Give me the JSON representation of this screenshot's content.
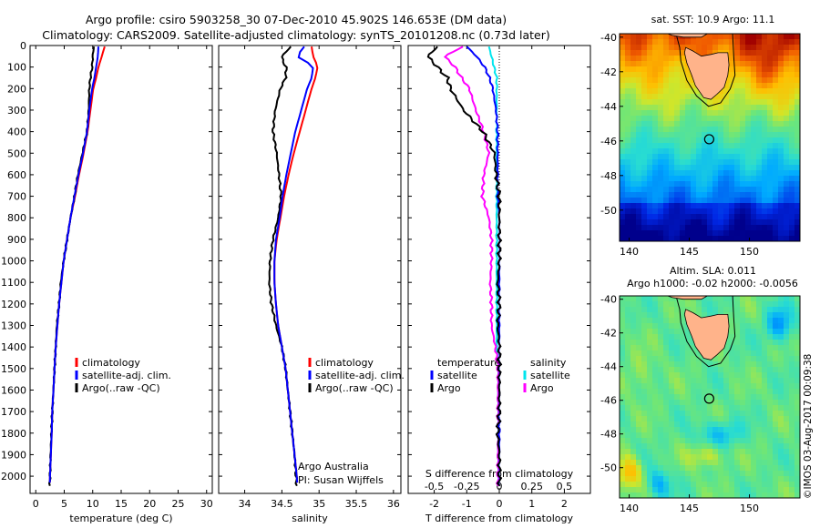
{
  "header": {
    "line1": "Argo profile: csiro 5903258_30 07-Dec-2010 45.902S 146.653E (DM data)",
    "line2": "Climatology: CARS2009. Satellite-adjusted climatology: synTS_20101208.nc (0.73d later)"
  },
  "colors": {
    "climatology": "#ff0000",
    "satellite": "#0000ff",
    "argo": "#000000",
    "sal_satellite": "#00e5ee",
    "sal_argo": "#ff00ff",
    "land": "#ffb38a"
  },
  "info": {
    "institution": "Argo Australia",
    "pi": "PI: Susan Wijffels",
    "watermark": "©IMOS 03-Aug-2017 00:09:38"
  },
  "maps": {
    "sst_title": "sat. SST: 10.9  Argo: 11.1",
    "sla_title1": "Altim. SLA: 0.011",
    "sla_title2": "Argo h1000: -0.02  h2000: -0.0056",
    "lat_ticks": [
      "-40",
      "-42",
      "-44",
      "-46",
      "-48",
      "-50"
    ],
    "lon_ticks": [
      "140",
      "145",
      "150"
    ],
    "lat_range": [
      -51.8,
      -39.8
    ],
    "lon_range": [
      139.2,
      154.2
    ],
    "float_lat": -45.902,
    "float_lon": 146.653
  },
  "chart_data": [
    {
      "type": "line",
      "xlabel": "temperature (deg C)",
      "ylabel": "",
      "xlim": [
        -1,
        31
      ],
      "ylim": [
        2080,
        0
      ],
      "xticks": [
        0,
        5,
        10,
        15,
        20,
        25,
        30
      ],
      "yticks": [
        0,
        100,
        200,
        300,
        400,
        500,
        600,
        700,
        800,
        900,
        1000,
        1100,
        1200,
        1300,
        1400,
        1500,
        1600,
        1700,
        1800,
        1900,
        2000
      ],
      "legend": [
        "climatology",
        "satellite-adj. clim.",
        "Argo(..raw -QC)"
      ],
      "depth": [
        5,
        50,
        100,
        150,
        200,
        300,
        400,
        500,
        600,
        700,
        800,
        900,
        1000,
        1100,
        1200,
        1300,
        1400,
        1500,
        1600,
        1700,
        1800,
        1900,
        2000,
        2050
      ],
      "series": [
        {
          "name": "climatology",
          "values": [
            12.1,
            11.6,
            11.0,
            10.6,
            10.1,
            9.6,
            9.1,
            8.4,
            7.6,
            6.9,
            6.1,
            5.5,
            4.9,
            4.5,
            4.1,
            3.8,
            3.5,
            3.3,
            3.1,
            2.9,
            2.8,
            2.65,
            2.5,
            2.45
          ]
        },
        {
          "name": "satellite-adj. clim.",
          "values": [
            11.0,
            10.9,
            10.6,
            10.3,
            9.9,
            9.4,
            9.0,
            8.3,
            7.5,
            6.8,
            6.1,
            5.5,
            4.9,
            4.5,
            4.1,
            3.8,
            3.5,
            3.3,
            3.1,
            2.9,
            2.8,
            2.65,
            2.5,
            2.45
          ]
        },
        {
          "name": "Argo(..raw -QC)",
          "values": [
            10.2,
            10.0,
            9.9,
            9.6,
            9.4,
            9.3,
            9.0,
            8.2,
            7.4,
            6.8,
            6.1,
            5.5,
            4.9,
            4.4,
            4.1,
            3.7,
            3.5,
            3.3,
            3.1,
            2.9,
            2.75,
            2.6,
            2.5,
            2.45
          ]
        }
      ]
    },
    {
      "type": "line",
      "xlabel": "salinity",
      "xlim": [
        33.65,
        36.1
      ],
      "ylim": [
        2080,
        0
      ],
      "xticks": [
        34,
        34.5,
        35,
        35.5,
        36
      ],
      "xticklabels": [
        "34",
        "34.5",
        "35",
        "35.5",
        "36"
      ],
      "legend": [
        "climatology",
        "satellite-adj. clim.",
        "Argo(..raw -QC)"
      ],
      "depth": [
        5,
        50,
        80,
        100,
        150,
        200,
        300,
        400,
        500,
        600,
        700,
        800,
        900,
        1000,
        1100,
        1200,
        1300,
        1400,
        1500,
        1600,
        1700,
        1800,
        1900,
        2000,
        2050
      ],
      "series": [
        {
          "name": "climatology",
          "values": [
            34.9,
            34.92,
            34.96,
            34.98,
            34.95,
            34.9,
            34.82,
            34.74,
            34.66,
            34.59,
            34.53,
            34.48,
            34.43,
            34.4,
            34.4,
            34.42,
            34.45,
            34.5,
            34.55,
            34.58,
            34.61,
            34.64,
            34.67,
            34.7,
            34.71
          ]
        },
        {
          "name": "satellite-adj. clim.",
          "values": [
            34.8,
            34.7,
            34.85,
            34.92,
            34.9,
            34.84,
            34.76,
            34.68,
            34.62,
            34.56,
            34.51,
            34.47,
            34.42,
            34.4,
            34.4,
            34.42,
            34.45,
            34.5,
            34.55,
            34.58,
            34.61,
            34.64,
            34.67,
            34.7,
            34.71
          ]
        },
        {
          "name": "Argo(..raw -QC)",
          "values": [
            34.62,
            34.5,
            34.52,
            34.56,
            34.55,
            34.48,
            34.41,
            34.38,
            34.43,
            34.46,
            34.49,
            34.45,
            34.38,
            34.34,
            34.33,
            34.36,
            34.42,
            34.5,
            34.55,
            34.58,
            34.61,
            34.64,
            34.67,
            34.69,
            34.7
          ]
        }
      ]
    },
    {
      "type": "line",
      "xlabel": "T difference from climatology",
      "xlabel2": "S difference from climatology",
      "xlim": [
        -2.8,
        2.8
      ],
      "xlim_top_salinity": [
        -0.7,
        0.7
      ],
      "ylim": [
        2080,
        0
      ],
      "xticks": [
        -2,
        -1,
        0,
        1,
        2
      ],
      "xticks_salinity": [
        -0.5,
        -0.25,
        0,
        0.25,
        0.5
      ],
      "xticklabels_salinity": [
        "-0.5",
        "-0.25",
        "0",
        "0.25",
        "0.5"
      ],
      "legend_heads": [
        "temperature",
        "salinity"
      ],
      "legend": [
        "satellite",
        "Argo",
        "satellite",
        "Argo"
      ],
      "depth": [
        5,
        50,
        100,
        150,
        200,
        300,
        400,
        500,
        600,
        700,
        800,
        900,
        1000,
        1100,
        1200,
        1300,
        1400,
        1500,
        1600,
        1700,
        1800,
        1900,
        2000,
        2050
      ],
      "series": [
        {
          "name": "satellite",
          "quantity": "temperature",
          "values": [
            -1.0,
            -0.7,
            -0.45,
            -0.3,
            -0.2,
            -0.1,
            -0.05,
            -0.05,
            -0.05,
            -0.05,
            0,
            0,
            0,
            0,
            0,
            0,
            0,
            0,
            0,
            0,
            0,
            0,
            0,
            0
          ]
        },
        {
          "name": "Argo",
          "quantity": "temperature",
          "values": [
            -1.9,
            -2.2,
            -1.9,
            -1.6,
            -1.5,
            -1.1,
            -0.5,
            -0.15,
            -0.1,
            0,
            0,
            0,
            0,
            -0.05,
            0,
            -0.05,
            0,
            0,
            0,
            0,
            -0.05,
            0,
            0,
            0
          ]
        },
        {
          "name": "satellite",
          "quantity": "salinity",
          "values": [
            -0.08,
            -0.06,
            -0.04,
            -0.02,
            -0.02,
            -0.02,
            -0.02,
            -0.02,
            -0.02,
            -0.02,
            -0.02,
            -0.02,
            -0.02,
            -0.02,
            -0.02,
            -0.02,
            -0.02,
            -0.01,
            -0.01,
            -0.01,
            -0.01,
            -0.01,
            -0.01,
            -0.01
          ]
        },
        {
          "name": "Argo",
          "quantity": "salinity",
          "values": [
            -0.28,
            -0.42,
            -0.34,
            -0.29,
            -0.23,
            -0.18,
            -0.12,
            -0.08,
            -0.12,
            -0.13,
            -0.08,
            -0.06,
            -0.06,
            -0.07,
            -0.06,
            -0.06,
            -0.03,
            -0.01,
            -0.01,
            -0.01,
            -0.01,
            -0.01,
            -0.01,
            -0.01
          ]
        }
      ]
    }
  ]
}
